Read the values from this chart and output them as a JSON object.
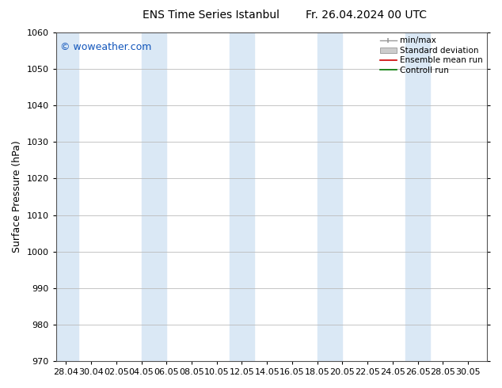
{
  "title": "ENS Time Series Istanbul",
  "title2": "Fr. 26.04.2024 00 UTC",
  "ylabel": "Surface Pressure (hPa)",
  "ylim": [
    970,
    1060
  ],
  "yticks": [
    970,
    980,
    990,
    1000,
    1010,
    1020,
    1030,
    1040,
    1050,
    1060
  ],
  "xtick_labels": [
    "28.04",
    "30.04",
    "02.05",
    "04.05",
    "06.05",
    "08.05",
    "10.05",
    "12.05",
    "14.05",
    "16.05",
    "18.05",
    "20.05",
    "22.05",
    "24.05",
    "26.05",
    "28.05",
    "30.05"
  ],
  "bg_color": "#ffffff",
  "plot_bg_color": "#ffffff",
  "band_color": "#dae8f5",
  "grid_color": "#bbbbbb",
  "watermark": "© woweather.com",
  "watermark_color": "#1155bb",
  "title_fontsize": 10,
  "axis_fontsize": 8,
  "watermark_fontsize": 9
}
